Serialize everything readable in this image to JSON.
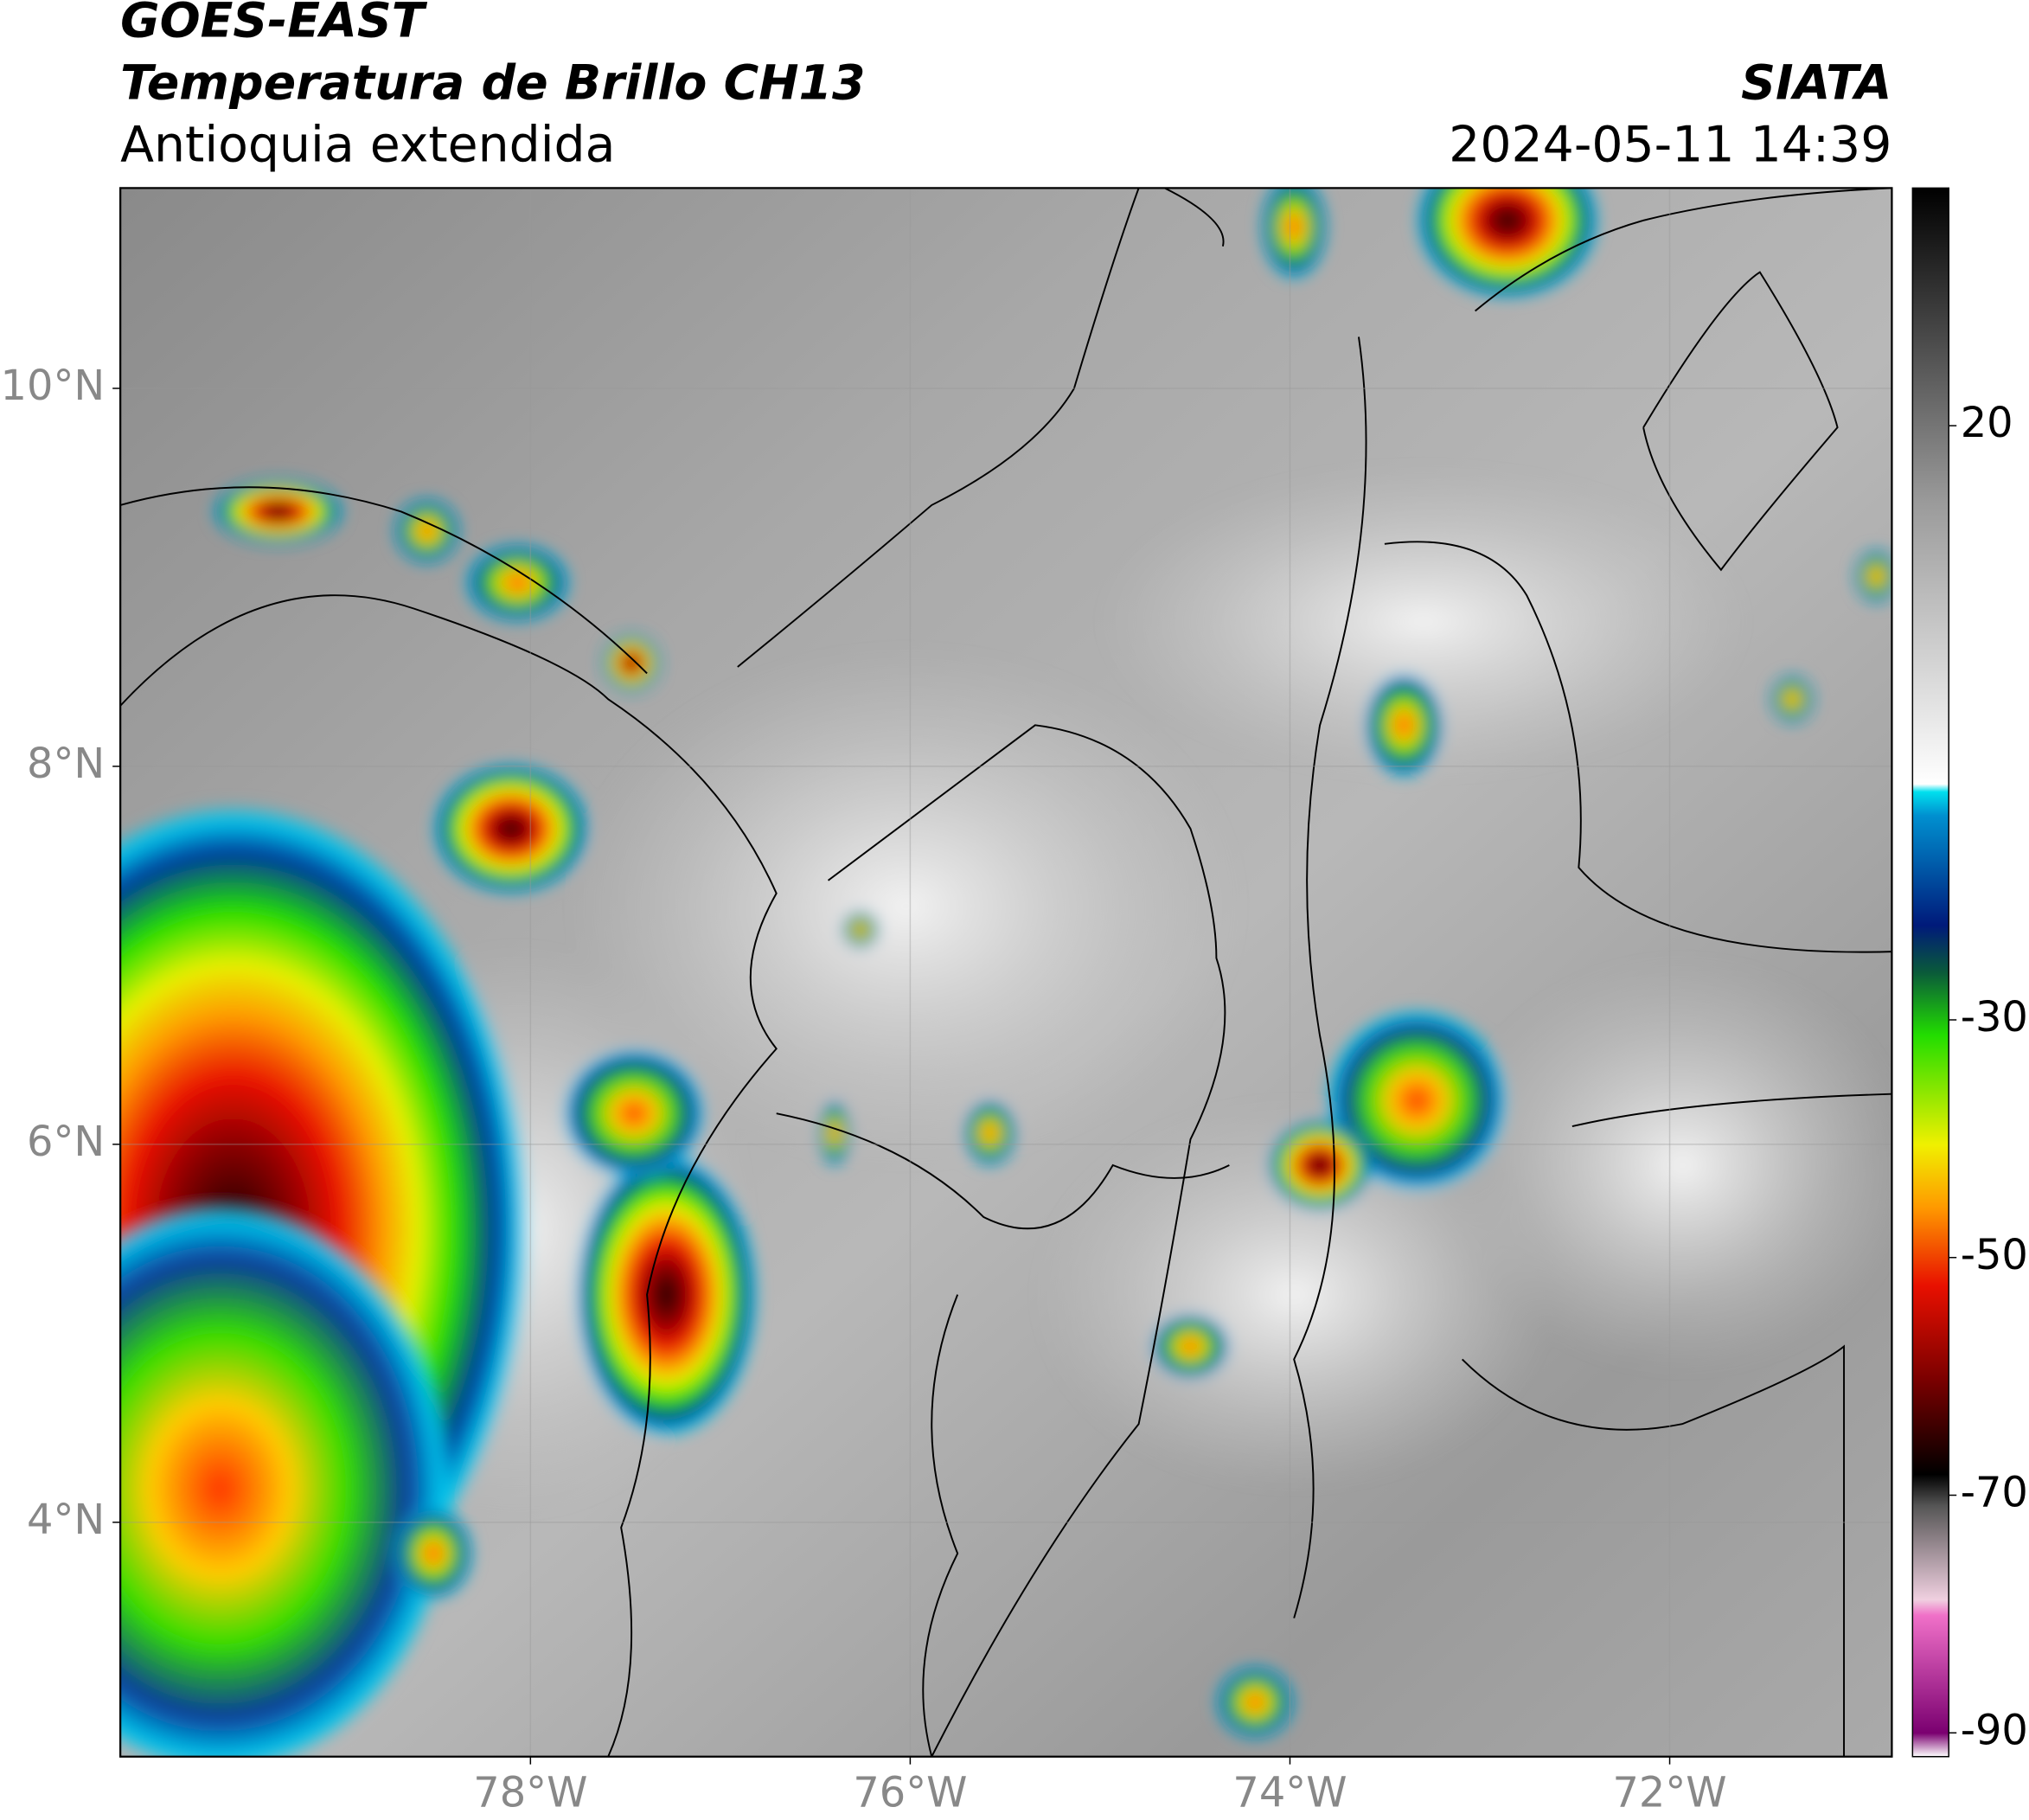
{
  "header": {
    "title": "GOES-EAST",
    "subtitle": "Temperatura de Brillo CH13",
    "region": "Antioquia extendida",
    "source": "SIATA",
    "datetime": "2024-05-11 14:39"
  },
  "map": {
    "xlim": [
      -80.16,
      -70.83
    ],
    "ylim": [
      2.76,
      11.06
    ],
    "xticks": [
      {
        "value": -78,
        "label": "78°W"
      },
      {
        "value": -76,
        "label": "76°W"
      },
      {
        "value": -74,
        "label": "74°W"
      },
      {
        "value": -72,
        "label": "72°W"
      }
    ],
    "yticks": [
      {
        "value": 10,
        "label": "10°N"
      },
      {
        "value": 8,
        "label": "8°N"
      },
      {
        "value": 6,
        "label": "6°N"
      },
      {
        "value": 4,
        "label": "4°N"
      }
    ],
    "grid": true
  },
  "colorbar": {
    "lim": [
      -92,
      40
    ],
    "ticks": [
      20,
      -30,
      -50,
      -70,
      -90
    ]
  }
}
